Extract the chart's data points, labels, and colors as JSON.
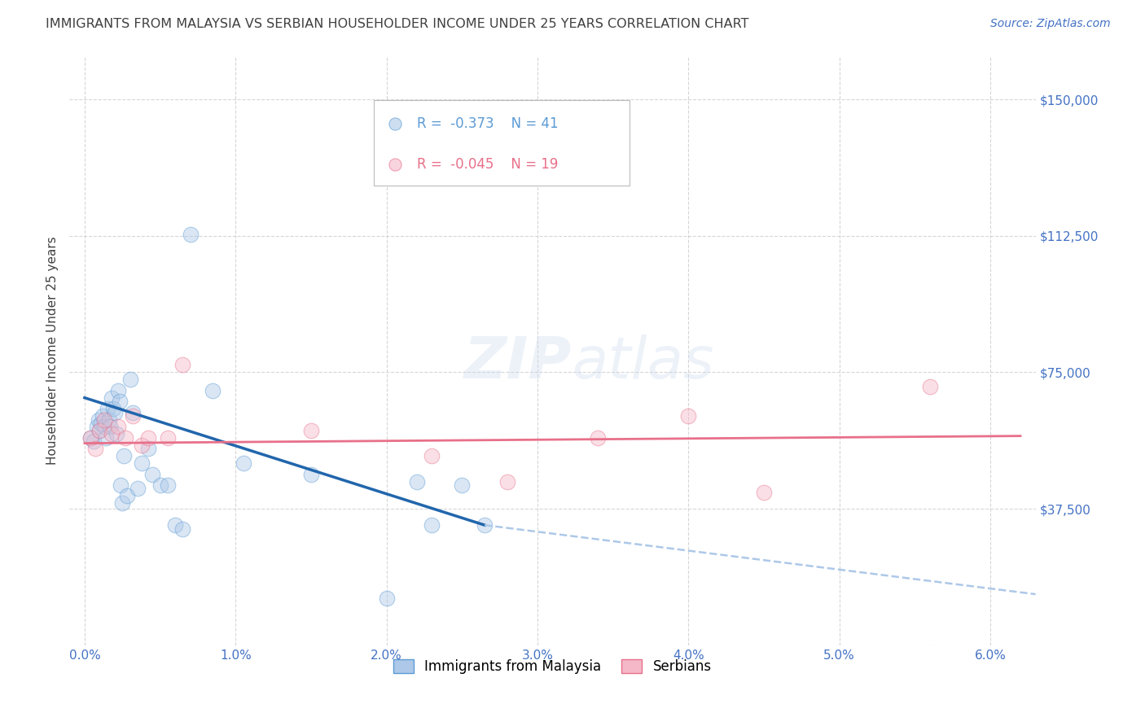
{
  "title": "IMMIGRANTS FROM MALAYSIA VS SERBIAN HOUSEHOLDER INCOME UNDER 25 YEARS CORRELATION CHART",
  "source": "Source: ZipAtlas.com",
  "ylabel": "Householder Income Under 25 years",
  "xlabel_vals": [
    0.0,
    1.0,
    2.0,
    3.0,
    4.0,
    5.0,
    6.0
  ],
  "ylabel_ticks": [
    0,
    37500,
    75000,
    112500,
    150000
  ],
  "ylabel_labels": [
    "",
    "$37,500",
    "$75,000",
    "$112,500",
    "$150,000"
  ],
  "xlim": [
    -0.1,
    6.3
  ],
  "ylim": [
    10000,
    162000
  ],
  "legend_r_malaysia": "-0.373",
  "legend_n_malaysia": "41",
  "legend_r_serbian": "-0.045",
  "legend_n_serbian": "19",
  "malaysia_color": "#adc8e8",
  "malaysia_edge_color": "#5b9bd5",
  "serbian_color": "#f4b8c8",
  "serbian_edge_color": "#e8708a",
  "malaysia_line_color": "#2166ac",
  "serbian_line_color": "#e8708a",
  "dashed_line_color": "#adc8e8",
  "background_color": "#ffffff",
  "grid_color": "#cccccc",
  "title_color": "#404040",
  "axis_label_color": "#4472c4",
  "watermark_color": "#ccdaee",
  "malaysia_x": [
    0.04,
    0.06,
    0.08,
    0.09,
    0.1,
    0.11,
    0.12,
    0.13,
    0.14,
    0.15,
    0.16,
    0.17,
    0.18,
    0.19,
    0.2,
    0.21,
    0.22,
    0.23,
    0.24,
    0.25,
    0.26,
    0.28,
    0.3,
    0.32,
    0.35,
    0.38,
    0.42,
    0.45,
    0.5,
    0.55,
    0.6,
    0.65,
    0.7,
    0.85,
    1.05,
    1.5,
    2.0,
    2.2,
    2.5,
    2.65,
    2.3
  ],
  "malaysia_y": [
    57000,
    56000,
    60000,
    62000,
    59000,
    61000,
    63000,
    60000,
    57000,
    65000,
    62000,
    60000,
    68000,
    65000,
    64000,
    58000,
    70000,
    67000,
    44000,
    39000,
    52000,
    41000,
    73000,
    64000,
    43000,
    50000,
    54000,
    47000,
    44000,
    44000,
    33000,
    32000,
    113000,
    70000,
    50000,
    47000,
    13000,
    45000,
    44000,
    33000,
    33000
  ],
  "serbian_x": [
    0.04,
    0.07,
    0.1,
    0.13,
    0.18,
    0.22,
    0.27,
    0.32,
    0.38,
    0.42,
    0.55,
    0.65,
    1.5,
    2.3,
    2.8,
    3.4,
    4.0,
    4.5,
    5.6
  ],
  "serbian_y": [
    57000,
    54000,
    59000,
    62000,
    58000,
    60000,
    57000,
    63000,
    55000,
    57000,
    57000,
    77000,
    59000,
    52000,
    45000,
    57000,
    63000,
    42000,
    71000
  ],
  "malaysia_trend_x": [
    0.0,
    2.65
  ],
  "malaysia_trend_y": [
    68000,
    33000
  ],
  "serbian_trend_x": [
    0.0,
    6.2
  ],
  "serbian_trend_y": [
    55500,
    57500
  ],
  "dashed_trend_x": [
    2.65,
    6.3
  ],
  "dashed_trend_y": [
    33000,
    14000
  ],
  "marker_size": 180,
  "alpha_fill": 0.45,
  "title_fontsize": 11.5,
  "source_fontsize": 10,
  "tick_fontsize": 11,
  "ylabel_fontsize": 11,
  "legend_fontsize": 12,
  "watermark_fontsize": 52,
  "watermark_alpha": 0.35
}
